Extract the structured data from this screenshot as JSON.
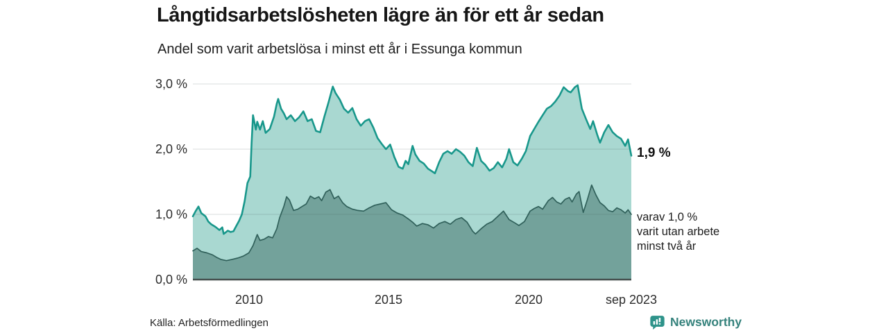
{
  "header": {
    "title": "Långtidsarbetslösheten lägre än för ett år sedan",
    "subtitle": "Andel som varit arbetslösa i minst ett år i Essunga kommun"
  },
  "chart_data": {
    "type": "area",
    "title": "Långtidsarbetslösheten lägre än för ett år sedan",
    "subtitle": "Andel som varit arbetslösa i minst ett år i Essunga kommun",
    "unit": "%",
    "legend_position": "none",
    "x_axis": {
      "range": [
        2008,
        2023.667
      ],
      "ticks": [
        {
          "x": 2010,
          "label": "2010"
        },
        {
          "x": 2015,
          "label": "2015"
        },
        {
          "x": 2020,
          "label": "2020"
        },
        {
          "x": 2023.667,
          "label": "sep 2023"
        }
      ]
    },
    "y_axis": {
      "range": [
        0,
        3.1
      ],
      "grid": true,
      "ticks": [
        {
          "v": 3,
          "label": "3,0 %"
        },
        {
          "v": 2,
          "label": "2,0 %"
        },
        {
          "v": 1,
          "label": "1,0 %"
        },
        {
          "v": 0,
          "label": "0,0 %"
        }
      ]
    },
    "series": [
      {
        "name": "Andel som varit arbetslösa i minst ett år",
        "color": "#18978b",
        "fill": "#a9d8d1",
        "end_value": 1.9,
        "end_label": "1,9 %",
        "x": [
          2008.0,
          2008.1,
          2008.2,
          2008.3,
          2008.45,
          2008.55,
          2008.65,
          2008.8,
          2008.95,
          2009.05,
          2009.1,
          2009.25,
          2009.35,
          2009.45,
          2009.55,
          2009.65,
          2009.75,
          2009.85,
          2009.95,
          2010.05,
          2010.1,
          2010.15,
          2010.25,
          2010.3,
          2010.4,
          2010.5,
          2010.6,
          2010.75,
          2010.9,
          2011.0,
          2011.05,
          2011.15,
          2011.25,
          2011.35,
          2011.5,
          2011.65,
          2011.8,
          2011.95,
          2012.1,
          2012.25,
          2012.4,
          2012.55,
          2012.7,
          2012.85,
          2013.0,
          2013.1,
          2013.25,
          2013.4,
          2013.55,
          2013.7,
          2013.85,
          2014.0,
          2014.15,
          2014.3,
          2014.45,
          2014.6,
          2014.75,
          2014.9,
          2015.05,
          2015.2,
          2015.35,
          2015.5,
          2015.6,
          2015.7,
          2015.85,
          2015.95,
          2016.1,
          2016.25,
          2016.4,
          2016.55,
          2016.65,
          2016.8,
          2016.95,
          2017.1,
          2017.25,
          2017.4,
          2017.55,
          2017.7,
          2017.85,
          2018.0,
          2018.15,
          2018.3,
          2018.45,
          2018.6,
          2018.75,
          2018.9,
          2019.05,
          2019.2,
          2019.3,
          2019.45,
          2019.6,
          2019.75,
          2019.9,
          2020.05,
          2020.2,
          2020.35,
          2020.5,
          2020.65,
          2020.8,
          2020.95,
          2021.1,
          2021.25,
          2021.4,
          2021.5,
          2021.65,
          2021.75,
          2021.9,
          2022.05,
          2022.2,
          2022.3,
          2022.45,
          2022.55,
          2022.7,
          2022.85,
          2023.0,
          2023.15,
          2023.3,
          2023.45,
          2023.55,
          2023.667
        ],
        "y": [
          0.97,
          1.05,
          1.12,
          1.02,
          0.97,
          0.89,
          0.85,
          0.81,
          0.76,
          0.8,
          0.7,
          0.75,
          0.73,
          0.74,
          0.82,
          0.9,
          1.0,
          1.2,
          1.48,
          1.58,
          2.1,
          2.52,
          2.3,
          2.42,
          2.3,
          2.43,
          2.25,
          2.31,
          2.5,
          2.7,
          2.77,
          2.62,
          2.55,
          2.46,
          2.52,
          2.43,
          2.49,
          2.58,
          2.43,
          2.46,
          2.28,
          2.26,
          2.5,
          2.72,
          2.96,
          2.86,
          2.76,
          2.62,
          2.56,
          2.63,
          2.46,
          2.36,
          2.43,
          2.46,
          2.33,
          2.17,
          2.08,
          2.0,
          2.07,
          1.88,
          1.73,
          1.7,
          1.82,
          1.77,
          2.05,
          1.92,
          1.82,
          1.78,
          1.7,
          1.66,
          1.63,
          1.8,
          1.93,
          1.97,
          1.93,
          2.0,
          1.96,
          1.9,
          1.8,
          1.74,
          2.02,
          1.82,
          1.76,
          1.67,
          1.71,
          1.8,
          1.72,
          1.85,
          2.0,
          1.8,
          1.75,
          1.85,
          1.97,
          2.2,
          2.31,
          2.42,
          2.52,
          2.62,
          2.66,
          2.73,
          2.82,
          2.95,
          2.89,
          2.87,
          2.95,
          2.98,
          2.62,
          2.46,
          2.31,
          2.43,
          2.22,
          2.1,
          2.26,
          2.37,
          2.26,
          2.2,
          2.16,
          2.05,
          2.15,
          1.9
        ]
      },
      {
        "name": "varav utan arbete minst två år",
        "color": "#30605a",
        "fill": "#73a29b",
        "end_value": 1.0,
        "end_label_lines": [
          "varav 1,0 %",
          "varit utan arbete",
          "minst två år"
        ],
        "x": [
          2008.0,
          2008.15,
          2008.3,
          2008.5,
          2008.7,
          2008.85,
          2009.0,
          2009.2,
          2009.4,
          2009.6,
          2009.8,
          2010.0,
          2010.15,
          2010.3,
          2010.4,
          2010.55,
          2010.7,
          2010.85,
          2011.0,
          2011.1,
          2011.25,
          2011.35,
          2011.45,
          2011.6,
          2011.75,
          2011.9,
          2012.05,
          2012.2,
          2012.35,
          2012.5,
          2012.6,
          2012.75,
          2012.9,
          2013.05,
          2013.2,
          2013.35,
          2013.5,
          2013.7,
          2013.9,
          2014.1,
          2014.3,
          2014.5,
          2014.7,
          2014.9,
          2015.1,
          2015.3,
          2015.5,
          2015.7,
          2015.85,
          2016.0,
          2016.2,
          2016.4,
          2016.6,
          2016.8,
          2017.0,
          2017.2,
          2017.4,
          2017.6,
          2017.8,
          2018.0,
          2018.1,
          2018.3,
          2018.5,
          2018.7,
          2018.9,
          2019.1,
          2019.3,
          2019.5,
          2019.65,
          2019.85,
          2020.05,
          2020.2,
          2020.35,
          2020.5,
          2020.7,
          2020.85,
          2021.0,
          2021.15,
          2021.3,
          2021.45,
          2021.55,
          2021.7,
          2021.8,
          2021.95,
          2022.1,
          2022.25,
          2022.4,
          2022.55,
          2022.7,
          2022.85,
          2023.0,
          2023.15,
          2023.3,
          2023.45,
          2023.55,
          2023.667
        ],
        "y": [
          0.44,
          0.48,
          0.43,
          0.41,
          0.38,
          0.34,
          0.31,
          0.29,
          0.31,
          0.33,
          0.36,
          0.41,
          0.52,
          0.69,
          0.6,
          0.62,
          0.66,
          0.64,
          0.78,
          0.95,
          1.12,
          1.27,
          1.22,
          1.06,
          1.08,
          1.12,
          1.16,
          1.28,
          1.24,
          1.27,
          1.21,
          1.34,
          1.38,
          1.24,
          1.28,
          1.18,
          1.12,
          1.08,
          1.06,
          1.05,
          1.1,
          1.14,
          1.16,
          1.18,
          1.07,
          1.02,
          0.99,
          0.93,
          0.88,
          0.82,
          0.86,
          0.84,
          0.79,
          0.86,
          0.89,
          0.85,
          0.92,
          0.95,
          0.88,
          0.74,
          0.7,
          0.78,
          0.85,
          0.89,
          0.97,
          1.05,
          0.92,
          0.87,
          0.83,
          0.89,
          1.05,
          1.09,
          1.12,
          1.08,
          1.21,
          1.26,
          1.19,
          1.16,
          1.23,
          1.26,
          1.19,
          1.31,
          1.35,
          1.03,
          1.23,
          1.45,
          1.3,
          1.18,
          1.13,
          1.06,
          1.04,
          1.1,
          1.07,
          1.02,
          1.07,
          1.0
        ]
      }
    ]
  },
  "footer": {
    "source": "Källa: Arbetsförmedlingen",
    "brand": "Newsworthy",
    "brand_color": "#35827c",
    "brand_icon": "newsworthy-bubble-barchart-icon"
  }
}
